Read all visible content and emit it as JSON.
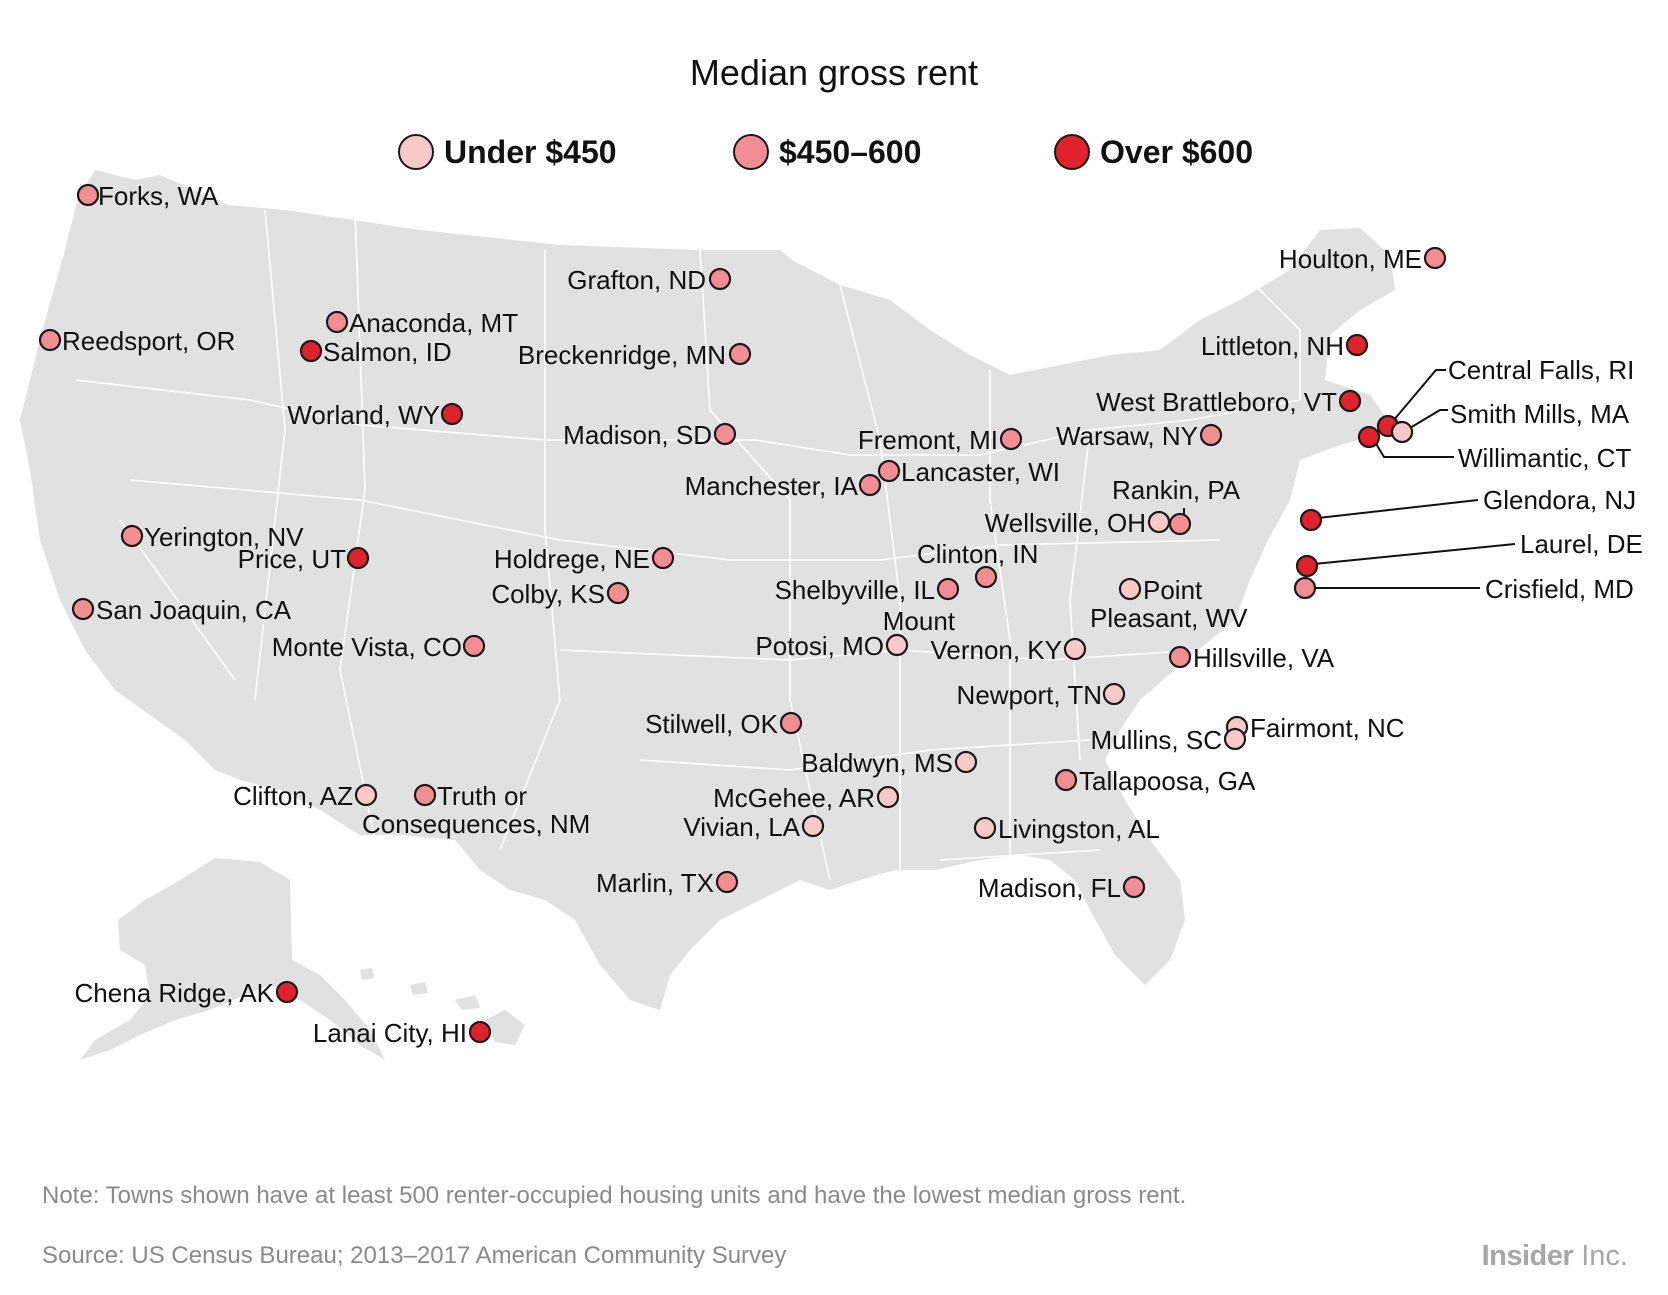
{
  "title": "Median gross rent",
  "legend": [
    {
      "label": "Under $450",
      "color": "#f9c9c9"
    },
    {
      "label": "$450–600",
      "color": "#f28e93"
    },
    {
      "label": "Over $600",
      "color": "#e0232b"
    }
  ],
  "colors": {
    "land": "#e1e1e1",
    "border": "#ffffff",
    "marker_stroke": "#1a1a1a",
    "text": "#111111"
  },
  "cities": [
    {
      "name": "Forks, WA",
      "category": 1
    },
    {
      "name": "Reedsport, OR",
      "category": 1
    },
    {
      "name": "Anaconda, MT",
      "category": 1
    },
    {
      "name": "Salmon, ID",
      "category": 2
    },
    {
      "name": "Worland, WY",
      "category": 2
    },
    {
      "name": "Yerington, NV",
      "category": 1
    },
    {
      "name": "Price, UT",
      "category": 2
    },
    {
      "name": "San Joaquin, CA",
      "category": 1
    },
    {
      "name": "Monte Vista, CO",
      "category": 1
    },
    {
      "name": "Clifton, AZ",
      "category": 0
    },
    {
      "name": "Truth or Consequences, NM",
      "category": 1
    },
    {
      "name": "Grafton, ND",
      "category": 1
    },
    {
      "name": "Breckenridge, MN",
      "category": 1
    },
    {
      "name": "Madison, SD",
      "category": 1
    },
    {
      "name": "Holdrege, NE",
      "category": 1
    },
    {
      "name": "Colby, KS",
      "category": 1
    },
    {
      "name": "Stilwell, OK",
      "category": 1
    },
    {
      "name": "Marlin, TX",
      "category": 1
    },
    {
      "name": "Manchester, IA",
      "category": 1
    },
    {
      "name": "Lancaster, WI",
      "category": 1
    },
    {
      "name": "Fremont, MI",
      "category": 1
    },
    {
      "name": "Shelbyville, IL",
      "category": 1
    },
    {
      "name": "Clinton, IN",
      "category": 1
    },
    {
      "name": "Potosi, MO",
      "category": 0
    },
    {
      "name": "McGehee, AR",
      "category": 0
    },
    {
      "name": "Vivian, LA",
      "category": 0
    },
    {
      "name": "Baldwyn, MS",
      "category": 0
    },
    {
      "name": "Livingston, AL",
      "category": 0
    },
    {
      "name": "Mount Vernon, KY",
      "category": 0
    },
    {
      "name": "Newport, TN",
      "category": 0
    },
    {
      "name": "Wellsville, OH",
      "category": 0
    },
    {
      "name": "Rankin, PA",
      "category": 1
    },
    {
      "name": "Point Pleasant, WV",
      "category": 0
    },
    {
      "name": "Hillsville, VA",
      "category": 1
    },
    {
      "name": "Fairmont, NC",
      "category": 0
    },
    {
      "name": "Mullins, SC",
      "category": 0
    },
    {
      "name": "Tallapoosa, GA",
      "category": 1
    },
    {
      "name": "Madison, FL",
      "category": 1
    },
    {
      "name": "Warsaw, NY",
      "category": 1
    },
    {
      "name": "Houlton, ME",
      "category": 1
    },
    {
      "name": "Littleton, NH",
      "category": 2
    },
    {
      "name": "West Brattleboro, VT",
      "category": 2
    },
    {
      "name": "Central Falls, RI",
      "category": 2
    },
    {
      "name": "Smith Mills, MA",
      "category": 0
    },
    {
      "name": "Willimantic, CT",
      "category": 2
    },
    {
      "name": "Glendora, NJ",
      "category": 2
    },
    {
      "name": "Laurel, DE",
      "category": 2
    },
    {
      "name": "Crisfield, MD",
      "category": 1
    },
    {
      "name": "Chena Ridge, AK",
      "category": 2
    },
    {
      "name": "Lanai City, HI",
      "category": 2
    }
  ],
  "note": "Note: Towns shown have at least 500 renter-occupied housing units and have the lowest median gross rent.",
  "source": "Source: US Census Bureau; 2013–2017 American Community Survey",
  "logo": {
    "bold": "Insider",
    "light": " Inc."
  }
}
